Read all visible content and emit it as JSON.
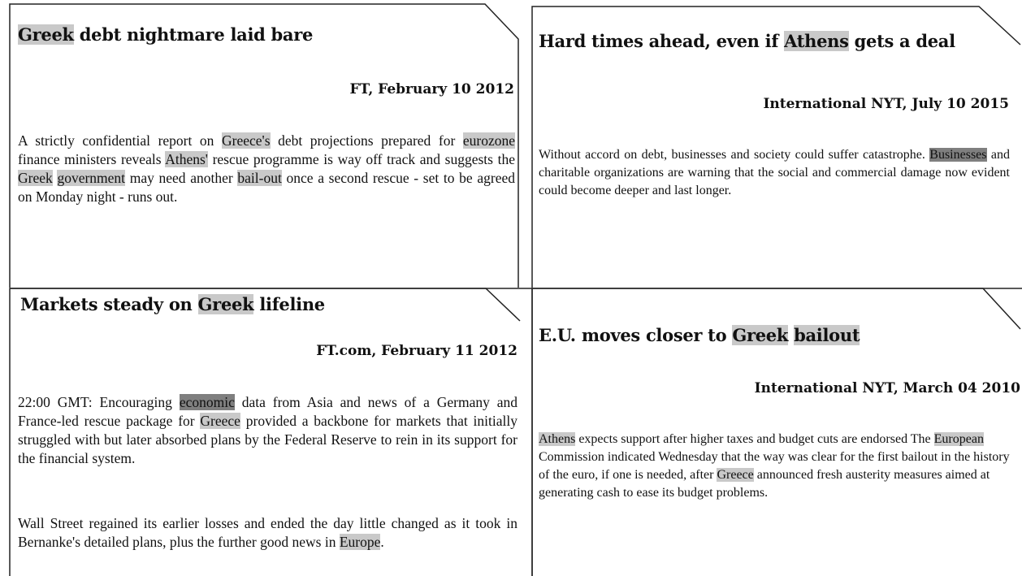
{
  "articles": [
    {
      "title": [
        {
          "text": "Greek",
          "highlight": "light"
        },
        " debt nightmare laid bare"
      ],
      "source": "FT, February 10 2012",
      "paragraphs": [
        [
          "A strictly confidential report on ",
          {
            "text": "Greece's",
            "highlight": "light"
          },
          " debt projections prepared for ",
          {
            "text": "eurozone",
            "highlight": "light"
          },
          " finance ministers reveals ",
          {
            "text": "Athens'",
            "highlight": "light"
          },
          " rescue programme is way off track and suggests the ",
          {
            "text": "Greek",
            "highlight": "light"
          },
          " ",
          {
            "text": "government",
            "highlight": "light"
          },
          " may need another ",
          {
            "text": "bail-out",
            "highlight": "light"
          },
          " once a second rescue - set to be agreed on Monday night - runs out."
        ]
      ]
    },
    {
      "title": [
        "Hard times ahead, even if ",
        {
          "text": "Athens",
          "highlight": "light"
        },
        " gets a deal"
      ],
      "source": "International NYT, July 10 2015",
      "paragraphs": [
        [
          "Without accord on debt, businesses and society could suffer catastrophe. ",
          {
            "text": "Businesses",
            "highlight": "dark"
          },
          " and charitable organizations are warning that the social and commercial damage now evident could become deeper and last longer."
        ]
      ]
    },
    {
      "title": [
        "Markets steady on ",
        {
          "text": "Greek",
          "highlight": "light"
        },
        " lifeline"
      ],
      "source": "FT.com, February 11 2012",
      "paragraphs": [
        [
          "22:00 GMT: Encouraging ",
          {
            "text": "economic",
            "highlight": "dark"
          },
          " data from Asia and news of a Germany and France-led rescue package for ",
          {
            "text": "Greece",
            "highlight": "light"
          },
          " provided a backbone for markets that initially struggled with but later absorbed plans by the Federal Reserve to rein in its support for the financial system."
        ],
        [
          "Wall Street regained its earlier losses and ended the day little changed as it took in Bernanke's detailed plans, plus the further good news in ",
          {
            "text": "Europe",
            "highlight": "light"
          },
          "."
        ]
      ]
    },
    {
      "title": [
        "E.U. moves closer to ",
        {
          "text": "Greek",
          "highlight": "light"
        },
        " ",
        {
          "text": "bailout",
          "highlight": "light"
        }
      ],
      "source": "International NYT, March 04 2010",
      "paragraphs": [
        [
          {
            "text": "Athens",
            "highlight": "light"
          },
          " expects support after higher taxes and budget cuts are endorsed The ",
          {
            "text": "European",
            "highlight": "light"
          },
          " Commission indicated Wednesday that the way was clear for the first bailout in the history of the euro, if one is needed, after ",
          {
            "text": "Greece",
            "highlight": "light"
          },
          " announced fresh austerity measures aimed at generating cash to ease its budget problems."
        ]
      ]
    }
  ]
}
